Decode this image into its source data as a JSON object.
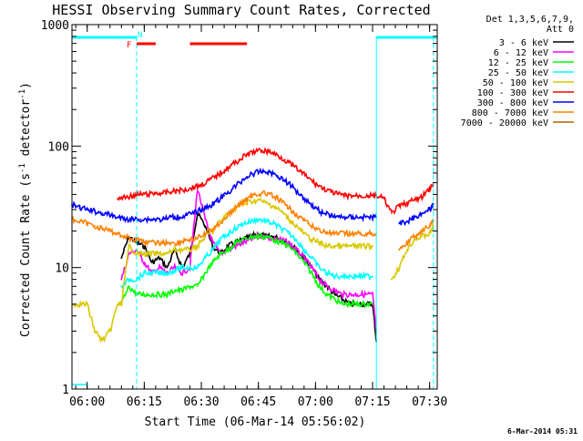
{
  "chart_data": {
    "type": "line",
    "title": "HESSI Observing Summary Count Rates, Corrected",
    "xlabel": "Start Time (06-Mar-14 05:56:02)",
    "ylabel": "Corrected Count Rate (s⁻¹ detector⁻¹)",
    "ylabel_parts": {
      "pre": "Corrected Count Rate (s",
      "exp1": "-1",
      "mid": " detector",
      "exp2": "-1",
      "post": ")"
    },
    "x_unit": "minutes since 05:56:02",
    "xlim": [
      0,
      96
    ],
    "ylim": [
      1,
      1000
    ],
    "yscale": "log",
    "x_ticks": [
      {
        "value": 4,
        "label": "06:00"
      },
      {
        "value": 19,
        "label": "06:15"
      },
      {
        "value": 34,
        "label": "06:30"
      },
      {
        "value": 49,
        "label": "06:45"
      },
      {
        "value": 64,
        "label": "07:00"
      },
      {
        "value": 79,
        "label": "07:15"
      },
      {
        "value": 94,
        "label": "07:30"
      }
    ],
    "y_ticks": [
      {
        "value": 1,
        "label": "1"
      },
      {
        "value": 10,
        "label": "10"
      },
      {
        "value": 100,
        "label": "100"
      },
      {
        "value": 1000,
        "label": "1000"
      }
    ],
    "legend_position": "right",
    "legend_header": [
      "Det 1,3,5,6,7,9,",
      "Att 0"
    ],
    "series": [
      {
        "name": "3 - 6 keV",
        "color": "#000000",
        "x": [
          13,
          15,
          17,
          19,
          21,
          23,
          25,
          27,
          29,
          31,
          33,
          35,
          37,
          39,
          41,
          43,
          45,
          47,
          49,
          51,
          53,
          55,
          57,
          59,
          61,
          63,
          65,
          67,
          69,
          71,
          73,
          75,
          77,
          79,
          80,
          82,
          84
        ],
        "y": [
          12,
          18,
          16,
          15,
          11,
          12,
          10,
          14,
          10,
          13,
          28,
          22,
          15,
          13,
          15,
          16,
          17,
          18,
          19,
          18,
          18,
          17,
          16,
          14,
          12,
          10,
          8,
          7,
          6,
          5.5,
          5,
          5,
          5,
          5,
          2.5,
          null,
          null
        ]
      },
      {
        "name": "6 - 12 keV",
        "color": "#ff00ff",
        "x": [
          13,
          15,
          17,
          19,
          21,
          23,
          25,
          27,
          29,
          31,
          33,
          35,
          37,
          39,
          41,
          43,
          45,
          47,
          49,
          51,
          53,
          55,
          57,
          59,
          61,
          63,
          65,
          67,
          69,
          71,
          73,
          75,
          77,
          79,
          80
        ],
        "y": [
          8,
          13,
          14,
          11,
          9,
          10,
          9,
          10,
          9,
          10,
          45,
          25,
          16,
          13,
          14,
          15,
          16,
          17,
          18,
          18,
          17,
          17,
          16,
          14,
          12,
          10,
          8,
          7,
          6.5,
          6,
          6,
          6,
          6,
          6,
          3
        ]
      },
      {
        "name": "12 - 25 keV",
        "color": "#00ff00",
        "x": [
          13,
          15,
          17,
          19,
          21,
          23,
          25,
          27,
          29,
          31,
          33,
          35,
          37,
          39,
          41,
          43,
          45,
          47,
          49,
          51,
          53,
          55,
          57,
          59,
          61,
          63,
          65,
          67,
          69,
          71,
          73,
          75,
          77,
          79
        ],
        "y": [
          5,
          7,
          6,
          6,
          6,
          6,
          6,
          6.5,
          6.5,
          7,
          7,
          9,
          11,
          13,
          14,
          16,
          17,
          18,
          18,
          18,
          17,
          16,
          15,
          13,
          11,
          9,
          7,
          6,
          5.5,
          5,
          5,
          5,
          5,
          5
        ]
      },
      {
        "name": "25 - 50 keV",
        "color": "#00ffff",
        "x": [
          13,
          15,
          17,
          19,
          21,
          23,
          25,
          27,
          29,
          31,
          33,
          35,
          37,
          39,
          41,
          43,
          45,
          47,
          49,
          51,
          53,
          55,
          57,
          59,
          61,
          63,
          65,
          67,
          69,
          71,
          73,
          75,
          77,
          79,
          81,
          83,
          85,
          87,
          89,
          91,
          93,
          95
        ],
        "y": [
          7,
          8,
          8,
          9,
          9,
          9,
          9,
          9.5,
          10,
          10,
          10,
          12,
          14,
          17,
          19,
          21,
          23,
          24,
          25,
          24,
          23,
          21,
          19,
          17,
          14,
          12,
          10,
          9,
          8.5,
          8.5,
          8.5,
          8.5,
          8.5,
          8.5,
          null,
          null,
          null,
          null,
          null,
          null,
          null,
          null
        ]
      },
      {
        "name": "50 - 100 keV",
        "color": "#d8c800",
        "x": [
          0,
          2,
          4,
          6,
          8,
          10,
          12,
          13,
          15,
          17,
          19,
          21,
          23,
          25,
          27,
          29,
          31,
          33,
          35,
          37,
          39,
          41,
          43,
          45,
          47,
          49,
          51,
          53,
          55,
          57,
          59,
          61,
          63,
          65,
          67,
          69,
          71,
          73,
          75,
          77,
          79,
          80,
          82,
          84,
          86,
          88,
          90,
          92,
          94,
          95
        ],
        "y": [
          5,
          5,
          5,
          3,
          2.5,
          3,
          5,
          5,
          15,
          13,
          13,
          13,
          13,
          13,
          14,
          14,
          14,
          15,
          18,
          20,
          24,
          28,
          31,
          33,
          35,
          36,
          34,
          32,
          29,
          25,
          22,
          19,
          17,
          16,
          15,
          15,
          15,
          15,
          15,
          15,
          15,
          null,
          null,
          8,
          10,
          14,
          17,
          18,
          19,
          22
        ]
      },
      {
        "name": "100 - 300 keV",
        "color": "#ff0000",
        "x": [
          12,
          14,
          16,
          18,
          20,
          22,
          24,
          26,
          28,
          30,
          32,
          34,
          36,
          38,
          40,
          42,
          44,
          46,
          48,
          50,
          52,
          54,
          56,
          58,
          60,
          62,
          64,
          66,
          68,
          70,
          72,
          74,
          76,
          78,
          80,
          82,
          84,
          86,
          88,
          90,
          92,
          94,
          95
        ],
        "y": [
          37,
          38,
          39,
          40,
          40,
          41,
          41,
          42,
          43,
          44,
          46,
          48,
          52,
          57,
          63,
          70,
          77,
          85,
          90,
          92,
          90,
          84,
          77,
          69,
          62,
          55,
          49,
          45,
          42,
          40,
          39,
          39,
          39,
          39,
          39,
          37,
          28,
          32,
          34,
          36,
          38,
          45,
          48
        ]
      },
      {
        "name": "300 - 800 keV",
        "color": "#0000ff",
        "x": [
          0,
          2,
          4,
          6,
          8,
          10,
          12,
          14,
          16,
          18,
          20,
          22,
          24,
          26,
          28,
          30,
          32,
          34,
          36,
          38,
          40,
          42,
          44,
          46,
          48,
          50,
          52,
          54,
          56,
          58,
          60,
          62,
          64,
          66,
          68,
          70,
          72,
          74,
          76,
          78,
          80,
          82,
          84,
          86,
          88,
          90,
          92,
          94,
          95
        ],
        "y": [
          33,
          31,
          30,
          29,
          28,
          27,
          26,
          25,
          25,
          25,
          25,
          25,
          25,
          26,
          26,
          27,
          28,
          30,
          32,
          35,
          39,
          44,
          50,
          56,
          60,
          62,
          61,
          57,
          52,
          46,
          40,
          35,
          31,
          28,
          27,
          26,
          26,
          26,
          26,
          26,
          26,
          null,
          null,
          23,
          24,
          26,
          28,
          30,
          33
        ]
      },
      {
        "name": "800 - 7000 keV",
        "color": "#ff8000",
        "x": [
          0,
          2,
          4,
          6,
          8,
          10,
          12,
          14,
          16,
          18,
          20,
          22,
          24,
          26,
          28,
          30,
          32,
          34,
          36,
          38,
          40,
          42,
          44,
          46,
          48,
          50,
          52,
          54,
          56,
          58,
          60,
          62,
          64,
          66,
          68,
          70,
          72,
          74,
          76,
          78,
          80,
          82,
          84,
          86,
          88,
          90,
          92,
          94,
          95
        ],
        "y": [
          25,
          24,
          23,
          22,
          21,
          20,
          19,
          18,
          17,
          17,
          16,
          16,
          16,
          16,
          16,
          17,
          17,
          18,
          20,
          22,
          25,
          29,
          33,
          37,
          40,
          41,
          40,
          37,
          33,
          29,
          26,
          23,
          21,
          20,
          19,
          19,
          19,
          19,
          19,
          19,
          19,
          null,
          null,
          14,
          16,
          18,
          20,
          22,
          24
        ]
      },
      {
        "name": "7000 - 20000 keV",
        "color": "#b06000",
        "x": [],
        "y": []
      }
    ],
    "status_bars": [
      {
        "label": "",
        "color": "#00ffff",
        "from": 0,
        "to": 17,
        "row": "upper"
      },
      {
        "label": "",
        "color": "#00ffff",
        "from": 80,
        "to": 96,
        "row": "upper"
      },
      {
        "label": "F",
        "color": "#ff0000",
        "from": 17,
        "to": 22,
        "row": "lower"
      },
      {
        "label": "",
        "color": "#ff0000",
        "from": 31,
        "to": 46,
        "row": "lower"
      },
      {
        "label": "N",
        "color": "#00ffff",
        "from": 17,
        "to": 17,
        "row": "label"
      }
    ],
    "vertical_markers": [
      {
        "x": 17,
        "style": "dashed",
        "color": "#00ffff"
      },
      {
        "x": 80,
        "style": "solid",
        "color": "#00ffff"
      },
      {
        "x": 95,
        "style": "dashed",
        "color": "#00ffff"
      }
    ]
  },
  "footer": {
    "date_stamp": "6-Mar-2014 05:31"
  }
}
